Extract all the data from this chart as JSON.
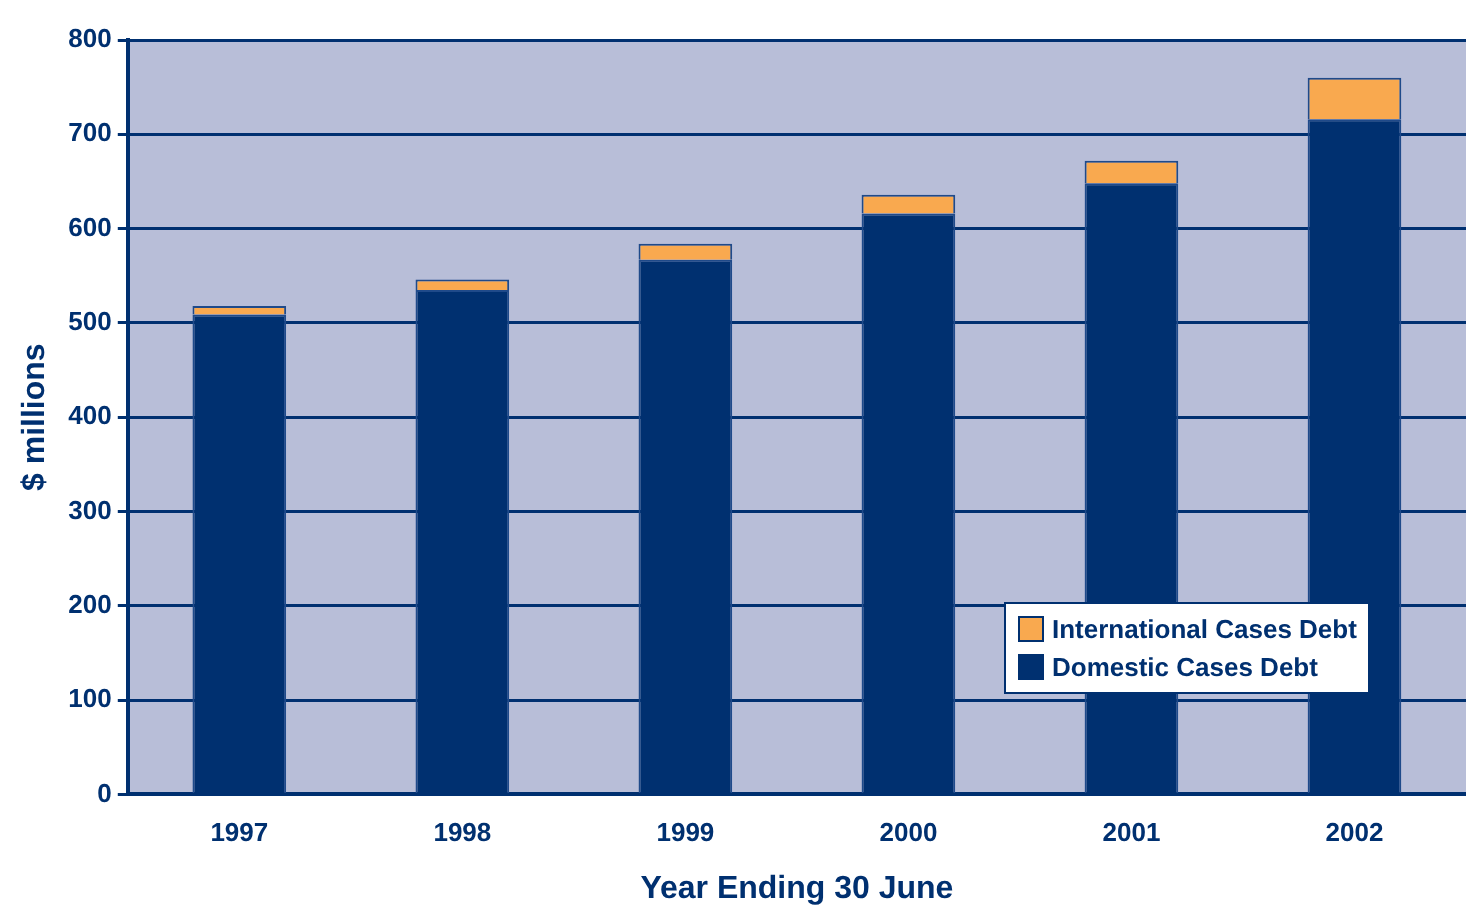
{
  "chart_data": {
    "type": "bar",
    "stacked": true,
    "xlabel": "Year Ending 30 June",
    "ylabel": "$ millions",
    "categories": [
      "1997",
      "1998",
      "1999",
      "2000",
      "2001",
      "2002"
    ],
    "series": [
      {
        "name": "Domestic Cases Debt",
        "color": "#003070",
        "values": [
          509,
          535,
          567,
          616,
          648,
          716
        ]
      },
      {
        "name": "International Cases Debt",
        "color": "#f9a94f",
        "values": [
          9,
          11,
          17,
          20,
          24,
          44
        ]
      }
    ],
    "ylim": [
      0,
      800
    ],
    "yticks": [
      0,
      100,
      200,
      300,
      400,
      500,
      600,
      700,
      800
    ],
    "grid": "y",
    "legend": "bottom right"
  }
}
